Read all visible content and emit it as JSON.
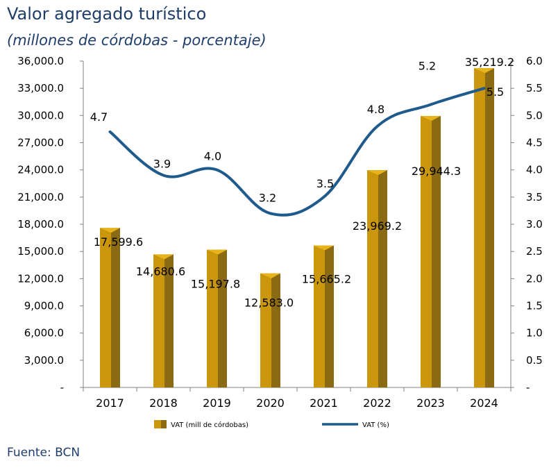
{
  "title": "Valor agregado turístico",
  "subtitle": "(millones de córdobas - porcentaje)",
  "source": "Fuente: BCN",
  "colors": {
    "bar_front": "#c9960c",
    "bar_side": "#8a6a12",
    "bar_top": "#e8b41a",
    "line": "#1f5a8c",
    "title": "#1f3d6b"
  },
  "chart_data": {
    "type": "bar",
    "categories": [
      "2017",
      "2018",
      "2019",
      "2020",
      "2021",
      "2022",
      "2023",
      "2024"
    ],
    "series": [
      {
        "name": "VAT (mill de córdobas)",
        "type": "bar",
        "axis": "left",
        "values": [
          17599.6,
          14680.6,
          15197.8,
          12583.0,
          15665.2,
          23969.2,
          29944.3,
          35219.2
        ],
        "labels": [
          "17,599.6",
          "14,680.6",
          "15,197.8",
          "12,583.0",
          "15,665.2",
          "23,969.2",
          "29,944.3",
          "35,219.2"
        ]
      },
      {
        "name": "VAT (%)",
        "type": "line",
        "axis": "right",
        "values": [
          4.7,
          3.9,
          4.0,
          3.2,
          3.5,
          4.8,
          5.2,
          5.5
        ],
        "labels": [
          "4.7",
          "3.9",
          "4.0",
          "3.2",
          "3.5",
          "4.8",
          "5.2",
          "5.5"
        ]
      }
    ],
    "y_left": {
      "ylim": [
        0,
        36000
      ],
      "ticks": [
        "-",
        "3,000.0",
        "6,000.0",
        "9,000.0",
        "12,000.0",
        "15,000.0",
        "18,000.0",
        "21,000.0",
        "24,000.0",
        "27,000.0",
        "30,000.0",
        "33,000.0",
        "36,000.0"
      ]
    },
    "y_right": {
      "ylim": [
        0,
        6.0
      ],
      "ticks": [
        "-",
        "0.5",
        "1.0",
        "1.5",
        "2.0",
        "2.5",
        "3.0",
        "3.5",
        "4.0",
        "4.5",
        "5.0",
        "5.5",
        "6.0"
      ]
    },
    "legend": {
      "position": "bottom"
    },
    "grid": false
  }
}
